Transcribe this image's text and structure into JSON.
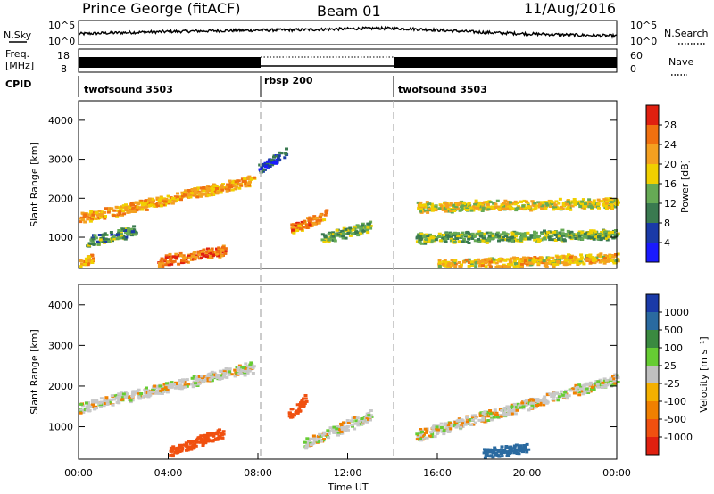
{
  "header": {
    "station": "Prince George (fitACF)",
    "beam": "Beam 01",
    "date": "11/Aug/2016"
  },
  "top_panels": {
    "nsky_label": "N.Sky",
    "nsearch_label": "N.Search",
    "freq_label_1": "Freq.",
    "freq_label_2": "[MHz]",
    "nave_label": "Nave",
    "cpid_label": "CPID",
    "noise_left_ticks": [
      "10^5",
      "10^0"
    ],
    "noise_right_ticks": [
      "10^5",
      "10^0"
    ],
    "freq_ticks": [
      "18",
      "8"
    ],
    "nave_ticks": [
      "60",
      "0"
    ]
  },
  "cpid_segments": [
    {
      "label": "twofsound 3503",
      "start_hour": 0,
      "end_hour": 8
    },
    {
      "label": "rbsp 200",
      "start_hour": 8,
      "end_hour": 14
    },
    {
      "label": "twofsound 3503",
      "start_hour": 14,
      "end_hour": 24
    }
  ],
  "colors": {
    "power_scale": [
      "#1a1aff",
      "#1a3aa8",
      "#3a7a50",
      "#66aa55",
      "#f0d000",
      "#f4a020",
      "#f07010",
      "#e02010"
    ],
    "velocity_scale": [
      "#1a3aa8",
      "#2a6aa0",
      "#3a8a40",
      "#66cc33",
      "#c0c0c0",
      "#f4b000",
      "#f08000",
      "#f05010",
      "#e02010"
    ],
    "ground_scatter": "#c8c8c8",
    "time_marker": "#bbbbbb"
  },
  "chart_data": [
    {
      "type": "heatmap",
      "name": "power",
      "xlabel": "",
      "ylabel": "Slant Range [km]",
      "xlim": [
        0,
        24
      ],
      "ylim": [
        200,
        4500
      ],
      "yticks": [
        1000,
        2000,
        3000,
        4000
      ],
      "colorbar_label": "Power [dB]",
      "colorbar_ticks": [
        "4",
        "8",
        "12",
        "16",
        "20",
        "24",
        "28"
      ],
      "colorbar_range": [
        0,
        32
      ],
      "features": [
        {
          "desc": "rising band",
          "hours": [
            0,
            7.8
          ],
          "range_start": 1500,
          "range_end": 2500,
          "power": 22
        },
        {
          "desc": "lower band",
          "hours": [
            0.3,
            2.5
          ],
          "range_start": 900,
          "range_end": 1200,
          "power": 12
        },
        {
          "desc": "near range",
          "hours": [
            3.5,
            6.5
          ],
          "range_start": 400,
          "range_end": 700,
          "power": 26
        },
        {
          "desc": "near range",
          "hours": [
            0,
            0.6
          ],
          "range_start": 300,
          "range_end": 500,
          "power": 22
        },
        {
          "desc": "blob",
          "hours": [
            9.4,
            11.0
          ],
          "range_start": 1200,
          "range_end": 1600,
          "power": 24
        },
        {
          "desc": "blob",
          "hours": [
            10.8,
            13.0
          ],
          "range_start": 1000,
          "range_end": 1300,
          "power": 14
        },
        {
          "desc": "upper echo",
          "hours": [
            8.0,
            9.2
          ],
          "range_start": 2800,
          "range_end": 3200,
          "power": 6
        },
        {
          "desc": "near range",
          "hours": [
            16,
            24
          ],
          "range_start": 300,
          "range_end": 500,
          "power": 20
        },
        {
          "desc": "band",
          "hours": [
            15,
            24
          ],
          "range_start": 1800,
          "range_end": 1900,
          "power": 18
        },
        {
          "desc": "band",
          "hours": [
            15,
            24
          ],
          "range_start": 1000,
          "range_end": 1100,
          "power": 14
        }
      ]
    },
    {
      "type": "heatmap",
      "name": "velocity",
      "xlabel": "Time UT",
      "ylabel": "Slant Range [km]",
      "xlim": [
        0,
        24
      ],
      "ylim": [
        200,
        4500
      ],
      "yticks": [
        1000,
        2000,
        3000,
        4000
      ],
      "xticks": [
        "00:00",
        "04:00",
        "08:00",
        "12:00",
        "16:00",
        "20:00",
        "00:00"
      ],
      "colorbar_label": "Velocity [m s⁻¹]",
      "colorbar_ticks": [
        "1000",
        "500",
        "100",
        "25",
        "-25",
        "-100",
        "-500",
        "-1000"
      ],
      "features": [
        {
          "desc": "ground scatter band",
          "hours": [
            0,
            7.8
          ],
          "range_start": 1500,
          "range_end": 2500,
          "velocity": 0
        },
        {
          "desc": "negative flow",
          "hours": [
            4,
            6.5
          ],
          "range_start": 400,
          "range_end": 900,
          "velocity": -150
        },
        {
          "desc": "negative flow",
          "hours": [
            9.3,
            10.1
          ],
          "range_start": 1300,
          "range_end": 1700,
          "velocity": -400
        },
        {
          "desc": "ground scatter",
          "hours": [
            10,
            13
          ],
          "range_start": 600,
          "range_end": 1300,
          "velocity": 0
        },
        {
          "desc": "positive flow",
          "hours": [
            18,
            20
          ],
          "range_start": 350,
          "range_end": 500,
          "velocity": 150
        },
        {
          "desc": "ground scatter bands",
          "hours": [
            15,
            24
          ],
          "range_start": 800,
          "range_end": 2200,
          "velocity": 0
        }
      ]
    }
  ]
}
